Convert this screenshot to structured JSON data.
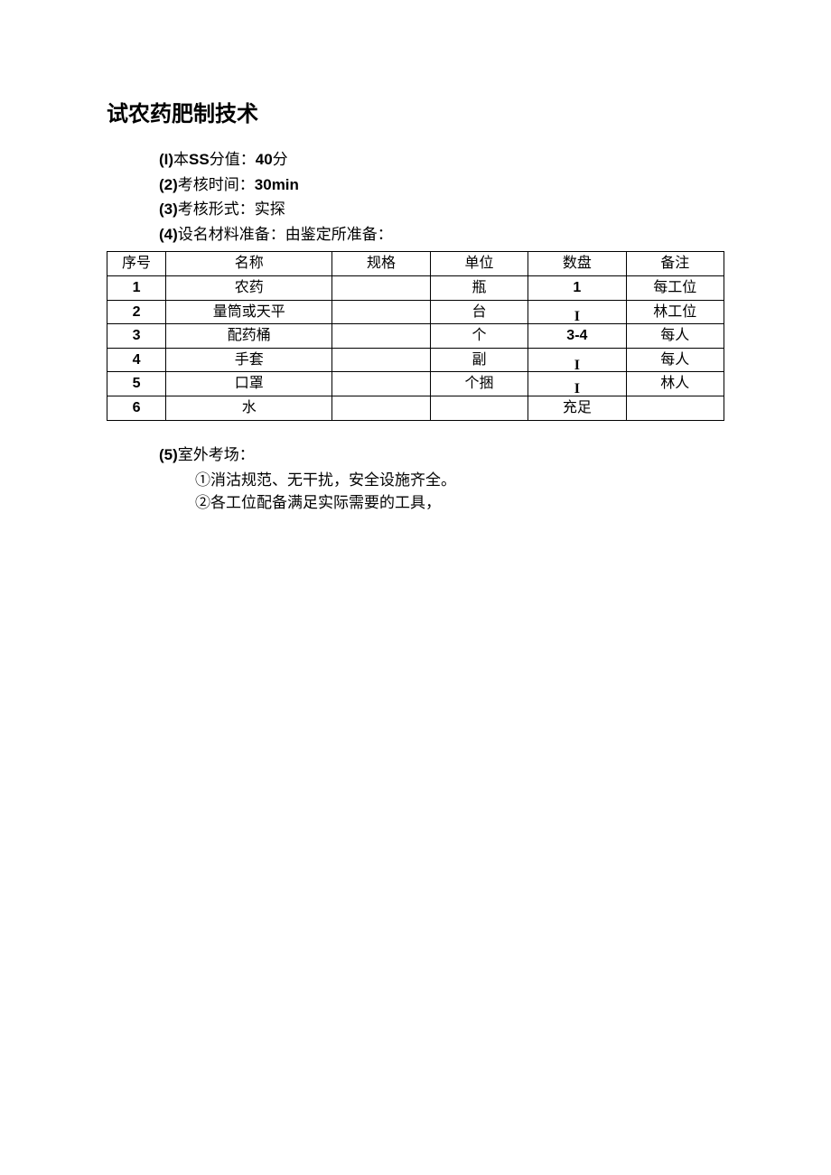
{
  "title": "试农药肥制技术",
  "info": {
    "item1": {
      "num": "(I)",
      "label": "本",
      "ss": "SS",
      "rest": "分值：",
      "value": "40",
      "suffix": "分"
    },
    "item2": {
      "num": "(2)",
      "label": "考核时间：",
      "value": "30min"
    },
    "item3": {
      "num": "(3)",
      "label": "考核形式：实探"
    },
    "item4": {
      "num": "(4)",
      "label": "设名材料准备：由鉴定所准备："
    }
  },
  "table": {
    "columns": [
      "序号",
      "名称",
      "规格",
      "单位",
      "数盘",
      "备注"
    ],
    "rows": [
      {
        "seq": "1",
        "name": "农药",
        "spec": "",
        "unit": "瓶",
        "qty": "1",
        "qtyBold": true,
        "note": "每工位"
      },
      {
        "seq": "2",
        "name": "量筒或天平",
        "spec": "",
        "unit": "台",
        "qty": "I",
        "qtyI": true,
        "note": "林工位"
      },
      {
        "seq": "3",
        "name": "配药桶",
        "spec": "",
        "unit": "个",
        "qty": "3-4",
        "qtyBold": true,
        "note": "每人"
      },
      {
        "seq": "4",
        "name": "手套",
        "spec": "",
        "unit": "副",
        "qty": "I",
        "qtyI": true,
        "note": "每人"
      },
      {
        "seq": "5",
        "name": "口罩",
        "spec": "",
        "unit": "个捆",
        "qty": "I",
        "qtyI": true,
        "note": "林人"
      },
      {
        "seq": "6",
        "name": "水",
        "spec": "",
        "unit": "",
        "qty": "充足",
        "qtyBold": false,
        "note": ""
      }
    ]
  },
  "section5": {
    "num": "(5)",
    "title": "室外考场：",
    "items": [
      "①消沽规范、无干扰，安全设施齐全。",
      "②各工位配备满足实际需要的工具，"
    ]
  }
}
